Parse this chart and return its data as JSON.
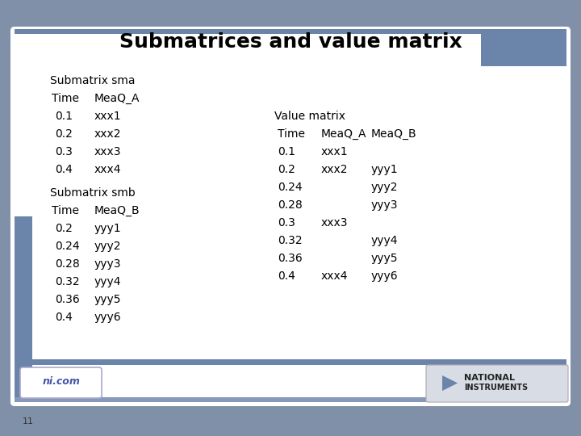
{
  "title": "Submatrices and value matrix",
  "title_fontsize": 18,
  "title_fontweight": "bold",
  "slide_bg": "#8090a8",
  "content_bg": "white",
  "sma_header": "Submatrix sma",
  "sma_col_headers": [
    "Time",
    "MeaQ_A"
  ],
  "sma_rows": [
    [
      "0.1",
      "xxx1"
    ],
    [
      "0.2",
      "xxx2"
    ],
    [
      "0.3",
      "xxx3"
    ],
    [
      "0.4",
      "xxx4"
    ]
  ],
  "smb_header": "Submatrix smb",
  "smb_col_headers": [
    "Time",
    "MeaQ_B"
  ],
  "smb_rows": [
    [
      "0.2",
      "yyy1"
    ],
    [
      "0.24",
      "yyy2"
    ],
    [
      "0.28",
      "yyy3"
    ],
    [
      "0.32",
      "yyy4"
    ],
    [
      "0.36",
      "yyy5"
    ],
    [
      "0.4",
      "yyy6"
    ]
  ],
  "vm_header": "Value matrix",
  "vm_col_headers": [
    "Time",
    "MeaQ_A",
    "MeaQ_B"
  ],
  "vm_rows": [
    [
      "0.1",
      "xxx1",
      ""
    ],
    [
      "0.2",
      "xxx2",
      "yyy1"
    ],
    [
      "0.24",
      "",
      "yyy2"
    ],
    [
      "0.28",
      "",
      "yyy3"
    ],
    [
      "0.3",
      "xxx3",
      ""
    ],
    [
      "0.32",
      "",
      "yyy4"
    ],
    [
      "0.36",
      "",
      "yyy5"
    ],
    [
      "0.4",
      "xxx4",
      "yyy6"
    ]
  ],
  "text_color": "#000000",
  "label_fontsize": 10,
  "header_fontsize": 10,
  "ni_text": "ni.com",
  "slide_number": "11",
  "accent_color": "#6b84aa",
  "accent_light": "#8898b8"
}
